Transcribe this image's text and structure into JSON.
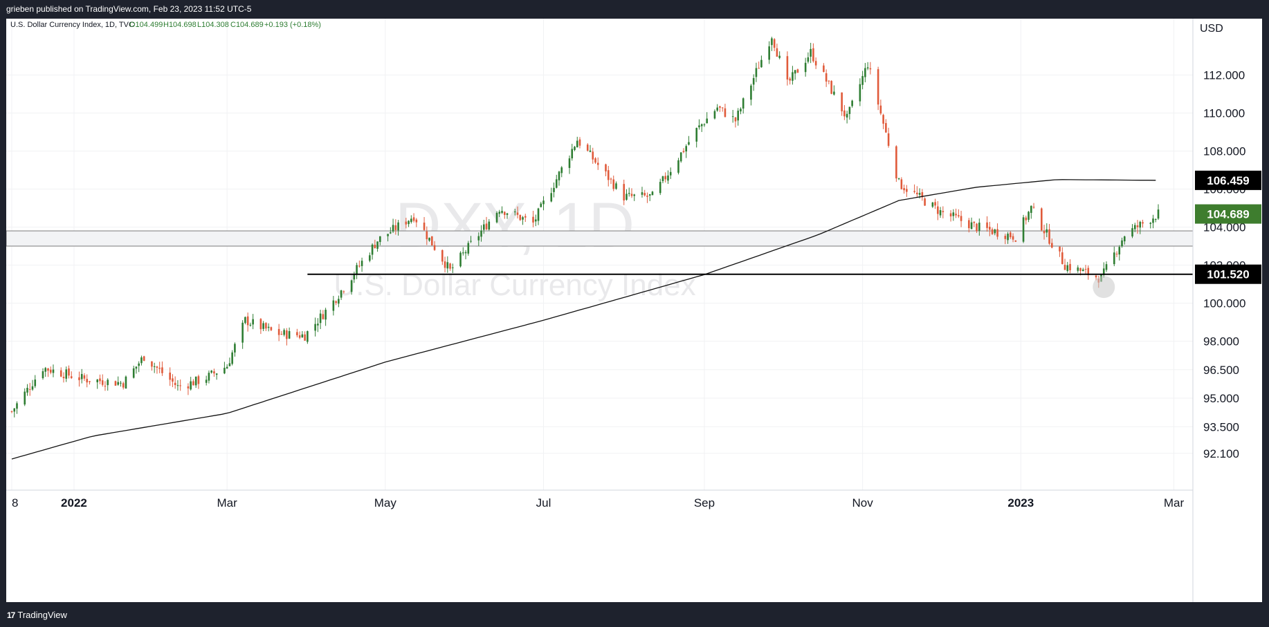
{
  "header": {
    "published_text": "grieben published on TradingView.com, Feb 23, 2023 11:52 UTC-5"
  },
  "footer": {
    "brand": "TradingView",
    "logo_glyph": "17"
  },
  "legend": {
    "symbol": "U.S. Dollar Currency Index, 1D, TVC",
    "open": "O104.499",
    "high": "H104.698",
    "low": "L104.308",
    "close": "C104.689",
    "change": "+0.193 (+0.18%)"
  },
  "watermark": {
    "symbol": "DXY, 1D",
    "name": "U.S. Dollar Currency Index"
  },
  "colors": {
    "up": "#2e7d32",
    "down": "#e05a3a",
    "ma": "#111111",
    "price_badge": "#3e7d2e",
    "level_badge": "#000000",
    "zone": "#f2f3f5"
  },
  "chart_data": {
    "type": "candlestick",
    "currency": "USD",
    "x_ticks": [
      "8",
      "2022",
      "Mar",
      "May",
      "Jul",
      "Sep",
      "Nov",
      "2023",
      "Mar"
    ],
    "y_ticks": [
      "92.100",
      "93.500",
      "95.000",
      "96.500",
      "98.000",
      "100.000",
      "102.000",
      "104.000",
      "106.000",
      "108.000",
      "110.000",
      "112.000"
    ],
    "y_range": [
      91.0,
      115.0
    ],
    "last_price": "104.689",
    "ma_last": "106.459",
    "support_level": "101.520",
    "zone": [
      103.0,
      103.8
    ],
    "support_start": "2022-04-01",
    "ma_series": {
      "dates": [
        "2021-12-08",
        "2022-01-08",
        "2022-03-01",
        "2022-05-01",
        "2022-07-01",
        "2022-09-01",
        "2022-10-15",
        "2022-11-15",
        "2022-12-15",
        "2023-01-15",
        "2023-02-23"
      ],
      "values": [
        91.8,
        93.0,
        94.2,
        96.9,
        99.1,
        101.5,
        103.6,
        105.4,
        106.1,
        106.5,
        106.46
      ]
    },
    "price_series": {
      "dates": [
        "2021-12-08",
        "2021-12-20",
        "2022-01-05",
        "2022-01-20",
        "2022-01-28",
        "2022-02-10",
        "2022-02-20",
        "2022-03-01",
        "2022-03-08",
        "2022-03-20",
        "2022-03-31",
        "2022-04-10",
        "2022-04-28",
        "2022-05-12",
        "2022-05-26",
        "2022-06-14",
        "2022-06-27",
        "2022-07-14",
        "2022-08-01",
        "2022-08-12",
        "2022-08-29",
        "2022-09-06",
        "2022-09-13",
        "2022-09-27",
        "2022-10-03",
        "2022-10-12",
        "2022-10-26",
        "2022-11-03",
        "2022-11-15",
        "2022-12-01",
        "2022-12-15",
        "2022-12-30",
        "2023-01-05",
        "2023-01-18",
        "2023-02-01",
        "2023-02-10",
        "2023-02-23"
      ],
      "values": [
        94.3,
        96.6,
        96.0,
        95.8,
        97.2,
        95.6,
        96.0,
        96.7,
        99.1,
        98.4,
        98.3,
        99.9,
        103.3,
        104.6,
        101.7,
        105.0,
        104.2,
        108.6,
        105.6,
        105.6,
        109.1,
        110.3,
        109.6,
        114.1,
        111.5,
        113.2,
        109.7,
        112.6,
        106.3,
        104.8,
        104.0,
        103.5,
        105.0,
        102.0,
        101.3,
        103.6,
        104.7
      ]
    }
  }
}
